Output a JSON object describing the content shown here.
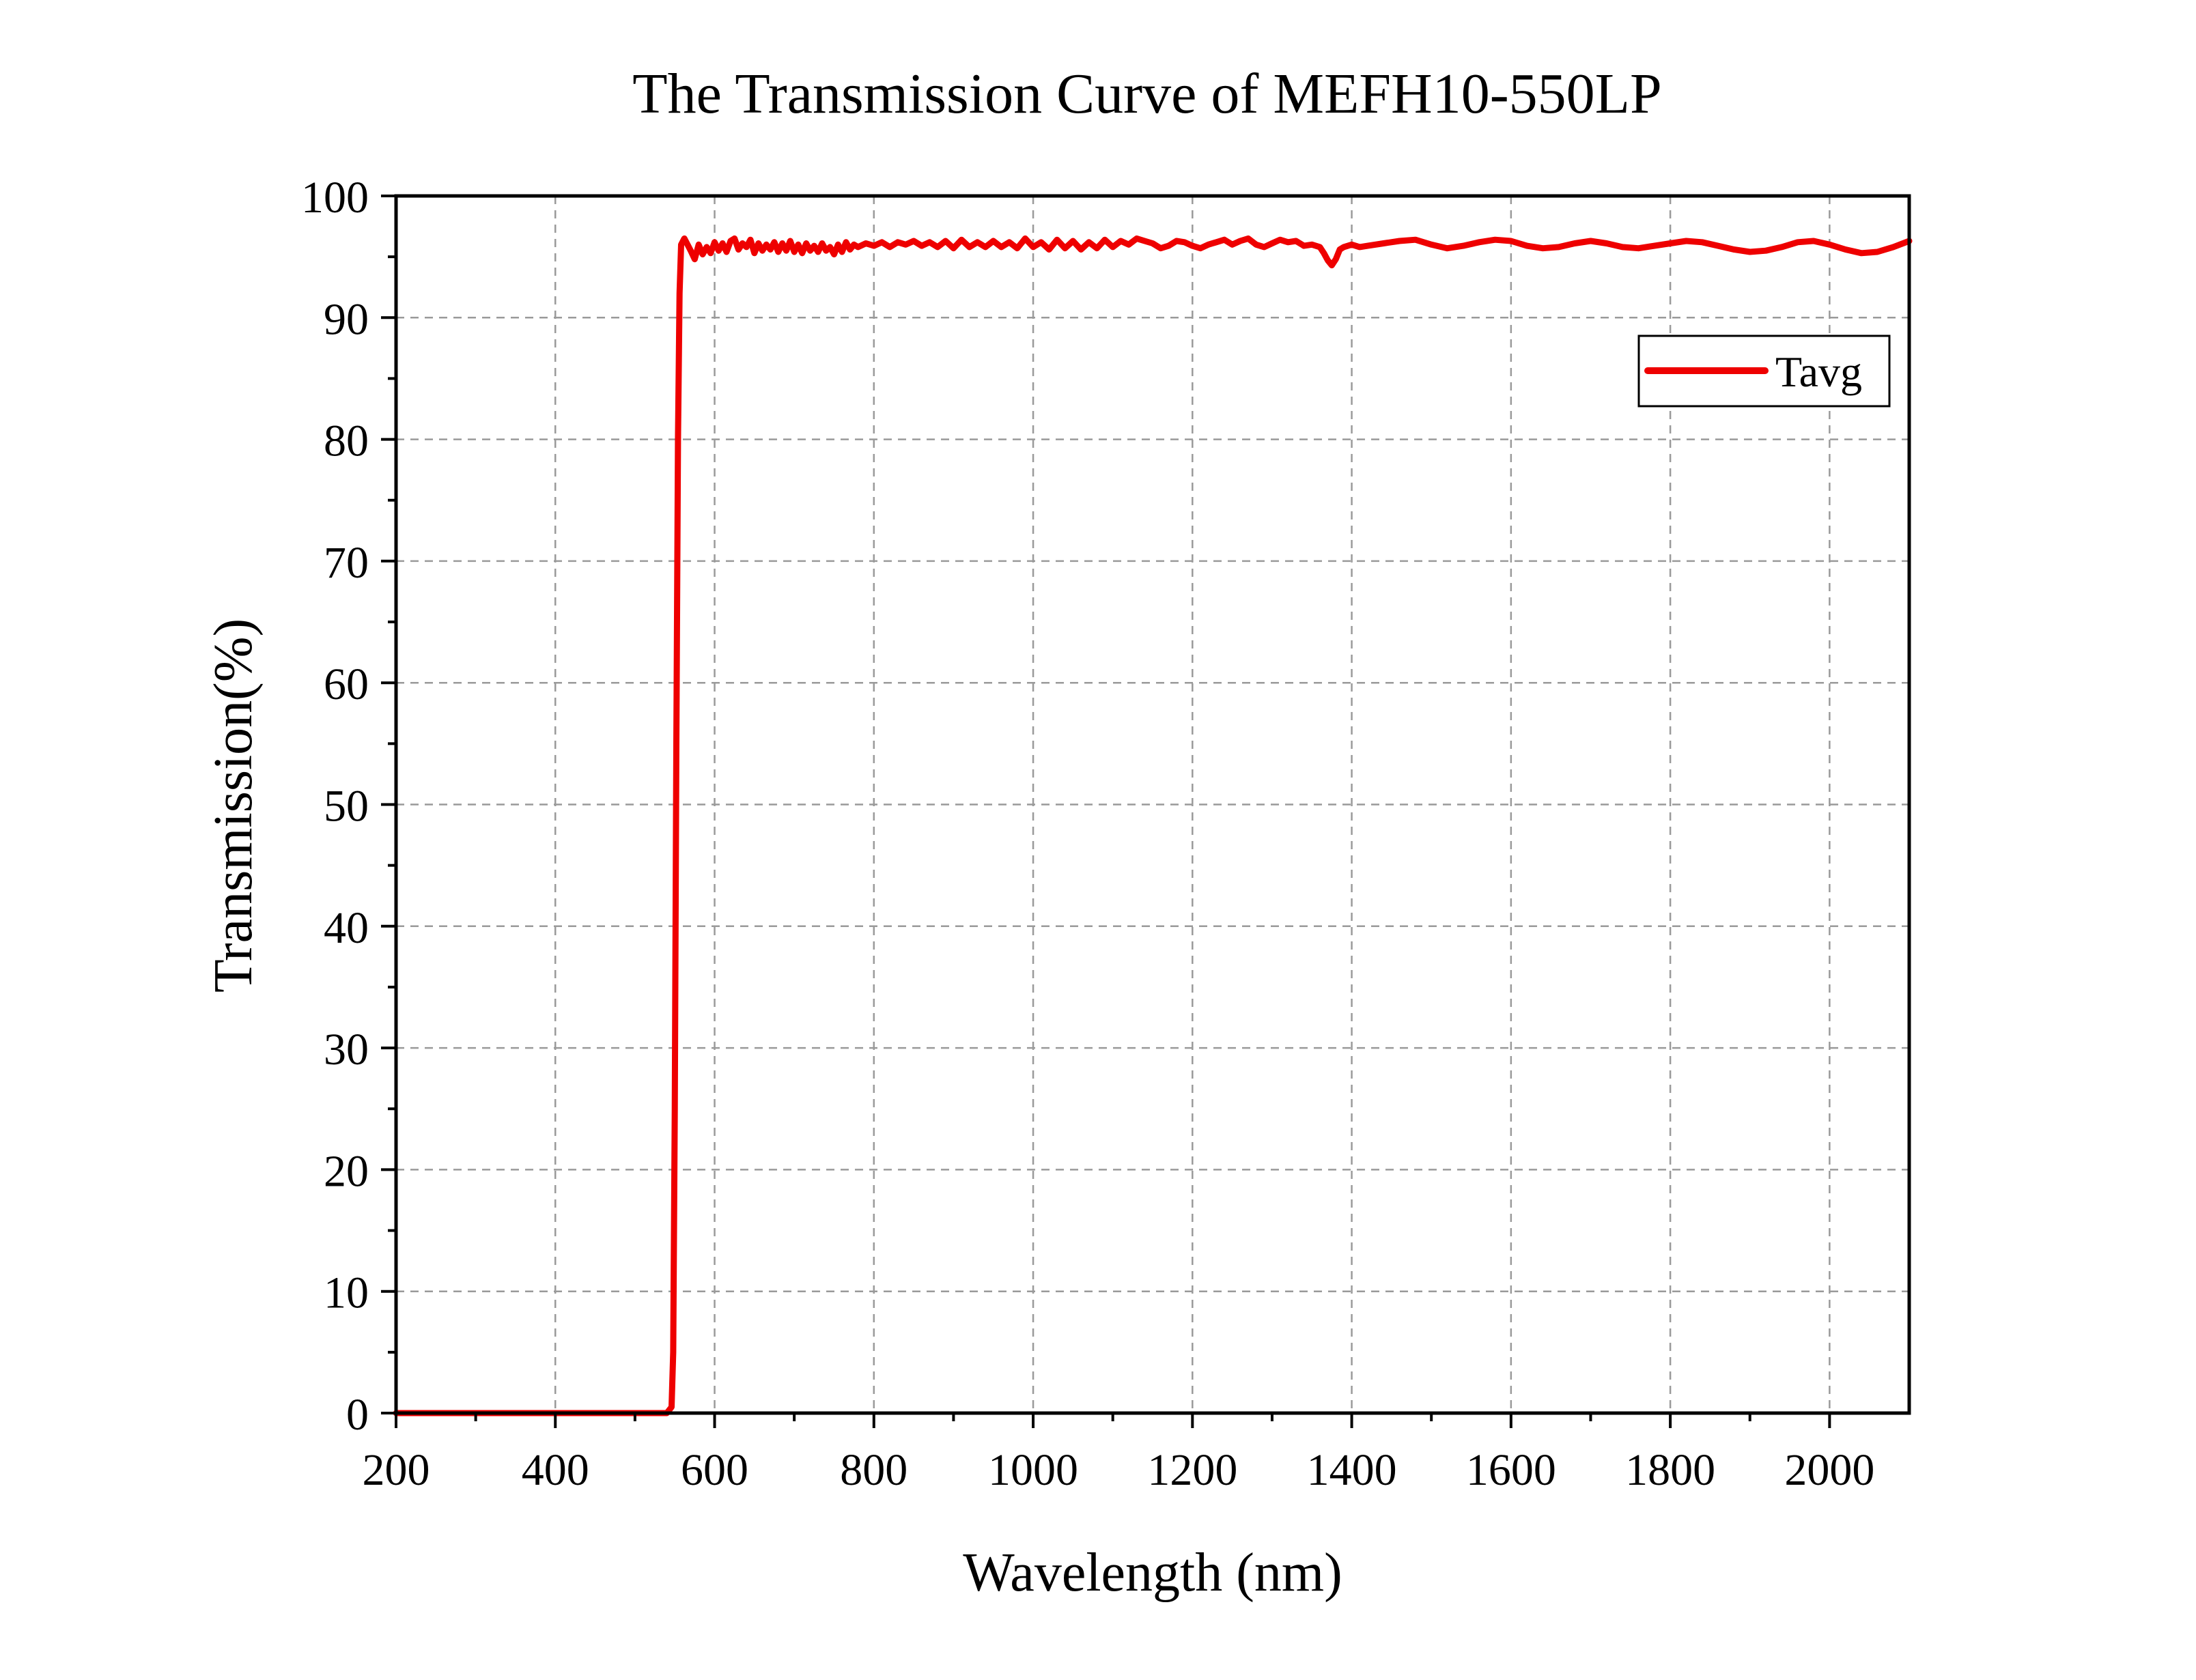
{
  "chart_data": {
    "type": "line",
    "title": "The Transmission Curve of MEFH10-550LP",
    "xlabel": "Wavelength (nm)",
    "ylabel": "Transmission(%)",
    "xlim": [
      200,
      2100
    ],
    "ylim": [
      0,
      100
    ],
    "x_ticks": [
      200,
      400,
      600,
      800,
      1000,
      1200,
      1400,
      1600,
      1800,
      2000
    ],
    "y_ticks": [
      0,
      10,
      20,
      30,
      40,
      50,
      60,
      70,
      80,
      90,
      100
    ],
    "x_tick_labels": [
      "200",
      "400",
      "600",
      "800",
      "1000",
      "1200",
      "1400",
      "1600",
      "1800",
      "2000"
    ],
    "y_tick_labels": [
      "0",
      "10",
      "20",
      "30",
      "40",
      "50",
      "60",
      "70",
      "80",
      "90",
      "100"
    ],
    "grid": true,
    "legend_position": "top-right",
    "series": [
      {
        "name": "Tavg",
        "color": "#ee0000",
        "x": [
          200,
          540,
          546,
          548,
          550,
          552,
          554,
          556,
          558,
          562,
          566,
          570,
          575,
          580,
          585,
          590,
          595,
          600,
          605,
          610,
          615,
          620,
          625,
          630,
          635,
          640,
          645,
          650,
          655,
          660,
          665,
          670,
          675,
          680,
          685,
          690,
          695,
          700,
          705,
          710,
          715,
          720,
          725,
          730,
          735,
          740,
          745,
          750,
          755,
          760,
          765,
          770,
          775,
          780,
          790,
          800,
          810,
          820,
          830,
          840,
          850,
          860,
          870,
          880,
          890,
          900,
          910,
          920,
          930,
          940,
          950,
          960,
          970,
          980,
          990,
          1000,
          1010,
          1020,
          1030,
          1040,
          1050,
          1060,
          1070,
          1080,
          1090,
          1100,
          1110,
          1120,
          1130,
          1140,
          1150,
          1160,
          1170,
          1180,
          1190,
          1200,
          1210,
          1220,
          1230,
          1240,
          1250,
          1260,
          1270,
          1280,
          1290,
          1300,
          1310,
          1320,
          1330,
          1340,
          1350,
          1360,
          1365,
          1370,
          1375,
          1380,
          1385,
          1390,
          1400,
          1410,
          1420,
          1440,
          1460,
          1480,
          1500,
          1520,
          1540,
          1560,
          1580,
          1600,
          1620,
          1640,
          1660,
          1680,
          1700,
          1720,
          1740,
          1760,
          1780,
          1800,
          1820,
          1840,
          1860,
          1880,
          1900,
          1920,
          1940,
          1960,
          1980,
          2000,
          2020,
          2040,
          2060,
          2080,
          2100
        ],
        "values": [
          0,
          0,
          0.5,
          5,
          25,
          55,
          80,
          92,
          96,
          96.5,
          96,
          95.5,
          94.8,
          96,
          95.2,
          95.8,
          95.3,
          96.2,
          95.5,
          96.1,
          95.4,
          96.3,
          96.5,
          95.6,
          96.1,
          95.8,
          96.4,
          95.3,
          96.1,
          95.5,
          96.0,
          95.6,
          96.2,
          95.4,
          96.1,
          95.5,
          96.3,
          95.4,
          96.0,
          95.3,
          96.1,
          95.5,
          95.9,
          95.4,
          96.1,
          95.5,
          95.8,
          95.2,
          96.0,
          95.4,
          96.2,
          95.6,
          96.0,
          95.8,
          96.1,
          95.9,
          96.2,
          95.8,
          96.2,
          96.0,
          96.3,
          95.9,
          96.2,
          95.8,
          96.3,
          95.7,
          96.4,
          95.8,
          96.2,
          95.8,
          96.3,
          95.8,
          96.2,
          95.7,
          96.5,
          95.8,
          96.2,
          95.6,
          96.4,
          95.7,
          96.3,
          95.6,
          96.2,
          95.7,
          96.4,
          95.8,
          96.3,
          96.0,
          96.5,
          96.3,
          96.1,
          95.7,
          95.9,
          96.3,
          96.2,
          95.9,
          95.7,
          96.0,
          96.2,
          96.4,
          96.0,
          96.3,
          96.5,
          96.0,
          95.8,
          96.1,
          96.4,
          96.2,
          96.3,
          95.9,
          96.0,
          95.8,
          95.3,
          94.7,
          94.3,
          94.8,
          95.6,
          95.8,
          96.0,
          95.8,
          95.9,
          96.1,
          96.3,
          96.4,
          96.0,
          95.7,
          95.9,
          96.2,
          96.4,
          96.3,
          95.9,
          95.7,
          95.8,
          96.1,
          96.3,
          96.1,
          95.8,
          95.7,
          95.9,
          96.1,
          96.3,
          96.2,
          95.9,
          95.6,
          95.4,
          95.5,
          95.8,
          96.2,
          96.3,
          96.0,
          95.6,
          95.3,
          95.4,
          95.8,
          96.3
        ]
      }
    ]
  }
}
